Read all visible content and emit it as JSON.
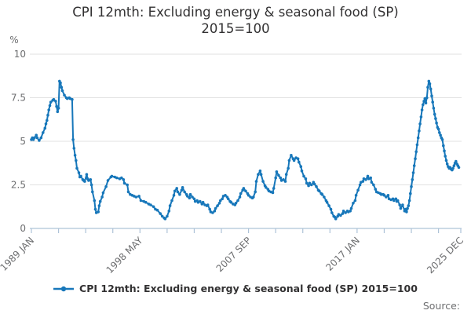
{
  "header": {
    "title_line1": "CPI 12mth: Excluding energy & seasonal food (SP)",
    "title_line2": "2015=100"
  },
  "y_axis": {
    "unit": "%"
  },
  "legend": {
    "label": "CPI 12mth: Excluding energy & seasonal food (SP) 2015=100"
  },
  "source": {
    "label": "Source:"
  },
  "colors": {
    "line": "#1777ba",
    "grid": "#e1e1e1",
    "axis": "#aec3d8",
    "text_muted": "#6d6e70",
    "text_dark": "#323132"
  },
  "chart_data": {
    "type": "line",
    "title": "CPI 12mth: Excluding energy & seasonal food (SP) 2015=100",
    "xlabel": "",
    "ylabel": "%",
    "ylim": [
      0,
      10
    ],
    "y_ticks": [
      0,
      2.5,
      5,
      7.5,
      10
    ],
    "grid": "horizontal",
    "legend_position": "bottom",
    "x_start": "1989 JAN",
    "x_end": "2025 DEC",
    "x_total_months": 443,
    "x_tick_months": [
      0,
      28,
      56,
      84,
      112,
      140,
      168,
      196,
      224,
      252,
      280,
      308,
      336,
      364,
      392,
      420,
      443
    ],
    "x_tick_labels": [
      {
        "month": 0,
        "label": "1989 JAN"
      },
      {
        "month": 112,
        "label": "1998 MAY"
      },
      {
        "month": 224,
        "label": "2007 SEP"
      },
      {
        "month": 336,
        "label": "2017 JAN"
      },
      {
        "month": 443,
        "label": "2025 DEC"
      }
    ],
    "series": [
      {
        "name": "CPI 12mth: Excluding energy & seasonal food (SP) 2015=100",
        "points_month_value": [
          [
            0,
            5.1
          ],
          [
            1,
            5.2
          ],
          [
            2,
            5.1
          ],
          [
            3,
            5.2
          ],
          [
            5,
            5.35
          ],
          [
            6,
            5.2
          ],
          [
            8,
            5.05
          ],
          [
            10,
            5.2
          ],
          [
            12,
            5.5
          ],
          [
            14,
            5.75
          ],
          [
            15,
            6.0
          ],
          [
            16,
            6.2
          ],
          [
            17,
            6.5
          ],
          [
            18,
            6.8
          ],
          [
            19,
            7.05
          ],
          [
            20,
            7.25
          ],
          [
            22,
            7.35
          ],
          [
            23,
            7.4
          ],
          [
            25,
            7.3
          ],
          [
            26,
            7.0
          ],
          [
            27,
            6.7
          ],
          [
            28,
            6.9
          ],
          [
            29,
            8.45
          ],
          [
            30,
            8.35
          ],
          [
            31,
            8.1
          ],
          [
            32,
            7.9
          ],
          [
            34,
            7.65
          ],
          [
            36,
            7.5
          ],
          [
            37,
            7.45
          ],
          [
            39,
            7.5
          ],
          [
            40,
            7.45
          ],
          [
            42,
            7.4
          ],
          [
            43,
            5.1
          ],
          [
            44,
            4.6
          ],
          [
            45,
            4.2
          ],
          [
            46,
            3.9
          ],
          [
            47,
            3.45
          ],
          [
            49,
            3.2
          ],
          [
            50,
            2.95
          ],
          [
            51,
            3.0
          ],
          [
            53,
            2.8
          ],
          [
            54,
            2.75
          ],
          [
            55,
            2.7
          ],
          [
            57,
            3.1
          ],
          [
            58,
            2.85
          ],
          [
            59,
            2.75
          ],
          [
            61,
            2.8
          ],
          [
            62,
            2.5
          ],
          [
            63,
            2.1
          ],
          [
            65,
            1.6
          ],
          [
            66,
            1.1
          ],
          [
            67,
            0.9
          ],
          [
            69,
            0.95
          ],
          [
            70,
            1.3
          ],
          [
            71,
            1.55
          ],
          [
            73,
            1.8
          ],
          [
            74,
            2.05
          ],
          [
            77,
            2.4
          ],
          [
            79,
            2.75
          ],
          [
            82,
            2.95
          ],
          [
            83,
            3.0
          ],
          [
            86,
            2.95
          ],
          [
            88,
            2.9
          ],
          [
            91,
            2.85
          ],
          [
            93,
            2.9
          ],
          [
            95,
            2.8
          ],
          [
            96,
            2.6
          ],
          [
            99,
            2.5
          ],
          [
            100,
            2.1
          ],
          [
            102,
            1.95
          ],
          [
            104,
            1.9
          ],
          [
            106,
            1.85
          ],
          [
            108,
            1.8
          ],
          [
            111,
            1.85
          ],
          [
            113,
            1.6
          ],
          [
            116,
            1.55
          ],
          [
            118,
            1.5
          ],
          [
            121,
            1.4
          ],
          [
            123,
            1.35
          ],
          [
            126,
            1.25
          ],
          [
            128,
            1.1
          ],
          [
            130,
            1.05
          ],
          [
            133,
            0.85
          ],
          [
            135,
            0.7
          ],
          [
            137,
            0.6
          ],
          [
            138,
            0.55
          ],
          [
            140,
            0.7
          ],
          [
            142,
            1.0
          ],
          [
            143,
            1.3
          ],
          [
            145,
            1.6
          ],
          [
            147,
            1.9
          ],
          [
            148,
            2.15
          ],
          [
            150,
            2.3
          ],
          [
            151,
            2.1
          ],
          [
            153,
            1.95
          ],
          [
            155,
            2.2
          ],
          [
            156,
            2.35
          ],
          [
            158,
            2.1
          ],
          [
            160,
            1.95
          ],
          [
            161,
            1.85
          ],
          [
            163,
            1.75
          ],
          [
            164,
            1.95
          ],
          [
            166,
            1.8
          ],
          [
            168,
            1.7
          ],
          [
            169,
            1.55
          ],
          [
            171,
            1.6
          ],
          [
            172,
            1.5
          ],
          [
            174,
            1.55
          ],
          [
            176,
            1.4
          ],
          [
            177,
            1.5
          ],
          [
            179,
            1.35
          ],
          [
            181,
            1.3
          ],
          [
            182,
            1.35
          ],
          [
            184,
            1.1
          ],
          [
            185,
            0.95
          ],
          [
            187,
            0.9
          ],
          [
            189,
            1.0
          ],
          [
            190,
            1.15
          ],
          [
            192,
            1.3
          ],
          [
            194,
            1.45
          ],
          [
            195,
            1.6
          ],
          [
            197,
            1.7
          ],
          [
            198,
            1.85
          ],
          [
            200,
            1.9
          ],
          [
            202,
            1.8
          ],
          [
            203,
            1.7
          ],
          [
            205,
            1.55
          ],
          [
            206,
            1.5
          ],
          [
            208,
            1.4
          ],
          [
            210,
            1.35
          ],
          [
            211,
            1.45
          ],
          [
            213,
            1.6
          ],
          [
            215,
            1.8
          ],
          [
            216,
            2.0
          ],
          [
            218,
            2.2
          ],
          [
            219,
            2.3
          ],
          [
            221,
            2.15
          ],
          [
            223,
            2.0
          ],
          [
            224,
            1.9
          ],
          [
            226,
            1.8
          ],
          [
            228,
            1.75
          ],
          [
            229,
            1.8
          ],
          [
            231,
            2.1
          ],
          [
            232,
            2.7
          ],
          [
            234,
            3.1
          ],
          [
            236,
            3.3
          ],
          [
            237,
            3.1
          ],
          [
            239,
            2.7
          ],
          [
            241,
            2.45
          ],
          [
            242,
            2.35
          ],
          [
            244,
            2.25
          ],
          [
            245,
            2.15
          ],
          [
            247,
            2.1
          ],
          [
            249,
            2.05
          ],
          [
            250,
            2.3
          ],
          [
            252,
            2.9
          ],
          [
            253,
            3.25
          ],
          [
            255,
            3.05
          ],
          [
            257,
            2.9
          ],
          [
            258,
            2.75
          ],
          [
            260,
            2.8
          ],
          [
            262,
            2.7
          ],
          [
            263,
            3.1
          ],
          [
            265,
            3.45
          ],
          [
            266,
            3.9
          ],
          [
            268,
            4.2
          ],
          [
            270,
            4.0
          ],
          [
            271,
            3.9
          ],
          [
            273,
            4.05
          ],
          [
            275,
            4.0
          ],
          [
            276,
            3.8
          ],
          [
            278,
            3.55
          ],
          [
            279,
            3.3
          ],
          [
            281,
            3.0
          ],
          [
            283,
            2.85
          ],
          [
            284,
            2.6
          ],
          [
            286,
            2.45
          ],
          [
            287,
            2.6
          ],
          [
            289,
            2.5
          ],
          [
            291,
            2.65
          ],
          [
            292,
            2.55
          ],
          [
            294,
            2.4
          ],
          [
            296,
            2.2
          ],
          [
            297,
            2.15
          ],
          [
            299,
            2.0
          ],
          [
            300,
            1.95
          ],
          [
            302,
            1.8
          ],
          [
            304,
            1.6
          ],
          [
            305,
            1.5
          ],
          [
            307,
            1.3
          ],
          [
            309,
            1.1
          ],
          [
            310,
            0.9
          ],
          [
            312,
            0.7
          ],
          [
            313,
            0.65
          ],
          [
            314,
            0.55
          ],
          [
            316,
            0.7
          ],
          [
            317,
            0.8
          ],
          [
            319,
            0.75
          ],
          [
            321,
            0.85
          ],
          [
            322,
            1.0
          ],
          [
            324,
            0.9
          ],
          [
            326,
            1.0
          ],
          [
            327,
            0.95
          ],
          [
            329,
            1.0
          ],
          [
            330,
            1.15
          ],
          [
            332,
            1.45
          ],
          [
            334,
            1.6
          ],
          [
            335,
            1.9
          ],
          [
            337,
            2.2
          ],
          [
            339,
            2.5
          ],
          [
            340,
            2.65
          ],
          [
            342,
            2.7
          ],
          [
            343,
            2.85
          ],
          [
            345,
            2.8
          ],
          [
            347,
            3.0
          ],
          [
            348,
            2.85
          ],
          [
            350,
            2.9
          ],
          [
            351,
            2.65
          ],
          [
            353,
            2.5
          ],
          [
            355,
            2.25
          ],
          [
            356,
            2.1
          ],
          [
            358,
            2.05
          ],
          [
            360,
            2.0
          ],
          [
            361,
            1.95
          ],
          [
            363,
            1.95
          ],
          [
            364,
            1.9
          ],
          [
            366,
            1.8
          ],
          [
            368,
            1.9
          ],
          [
            369,
            1.7
          ],
          [
            371,
            1.65
          ],
          [
            373,
            1.7
          ],
          [
            374,
            1.6
          ],
          [
            376,
            1.7
          ],
          [
            377,
            1.55
          ],
          [
            378,
            1.6
          ],
          [
            380,
            1.35
          ],
          [
            381,
            1.15
          ],
          [
            383,
            1.35
          ],
          [
            385,
            1.0
          ],
          [
            386,
            1.1
          ],
          [
            387,
            0.95
          ],
          [
            388,
            1.15
          ],
          [
            389,
            1.3
          ],
          [
            390,
            1.6
          ],
          [
            391,
            2.0
          ],
          [
            392,
            2.4
          ],
          [
            393,
            2.8
          ],
          [
            394,
            3.2
          ],
          [
            395,
            3.6
          ],
          [
            396,
            4.0
          ],
          [
            397,
            4.4
          ],
          [
            398,
            4.8
          ],
          [
            399,
            5.2
          ],
          [
            400,
            5.6
          ],
          [
            401,
            6.0
          ],
          [
            402,
            6.4
          ],
          [
            403,
            6.8
          ],
          [
            404,
            7.1
          ],
          [
            405,
            7.3
          ],
          [
            406,
            7.45
          ],
          [
            407,
            7.2
          ],
          [
            408,
            7.5
          ],
          [
            409,
            8.1
          ],
          [
            410,
            8.45
          ],
          [
            411,
            8.3
          ],
          [
            412,
            8.0
          ],
          [
            413,
            7.6
          ],
          [
            414,
            7.25
          ],
          [
            415,
            6.9
          ],
          [
            416,
            6.55
          ],
          [
            417,
            6.3
          ],
          [
            418,
            6.05
          ],
          [
            419,
            5.8
          ],
          [
            420,
            5.7
          ],
          [
            421,
            5.5
          ],
          [
            422,
            5.35
          ],
          [
            423,
            5.2
          ],
          [
            424,
            5.1
          ],
          [
            425,
            4.75
          ],
          [
            426,
            4.45
          ],
          [
            427,
            4.15
          ],
          [
            428,
            3.9
          ],
          [
            429,
            3.7
          ],
          [
            430,
            3.55
          ],
          [
            431,
            3.45
          ],
          [
            432,
            3.5
          ],
          [
            433,
            3.4
          ],
          [
            434,
            3.35
          ],
          [
            435,
            3.45
          ],
          [
            436,
            3.6
          ],
          [
            437,
            3.75
          ],
          [
            438,
            3.85
          ],
          [
            439,
            3.7
          ],
          [
            440,
            3.6
          ],
          [
            441,
            3.5
          ]
        ]
      }
    ]
  }
}
